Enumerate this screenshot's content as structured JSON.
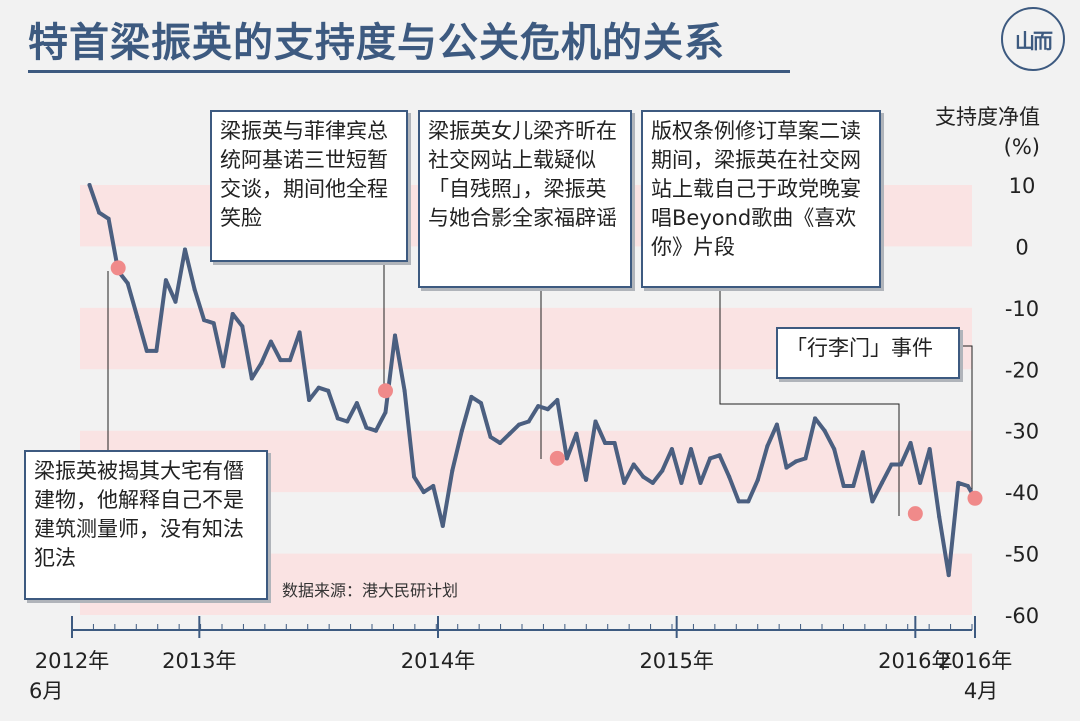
{
  "title": "特首梁振英的支持度与公关危机的关系",
  "logo_text": "山而",
  "source": "数据来源：港大民研计划",
  "ylabel_line1": "支持度净值",
  "ylabel_line2": "(%)",
  "colors": {
    "line": "#4b5f80",
    "band": "#fae3e3",
    "marker": "#f08a8a",
    "axis": "#3d5a80",
    "callout_border": "#3d5a80"
  },
  "callouts": [
    {
      "id": "c1",
      "text": "梁振英被揭其大宅有僭建物，他解释自己不是建筑测量师，没有知法犯法"
    },
    {
      "id": "c2",
      "text": "梁振英与菲律宾总统阿基诺三世短暂交谈，期间他全程笑脸"
    },
    {
      "id": "c3",
      "text": "梁振英女儿梁齐昕在社交网站上载疑似「自残照」，梁振英与她合影全家福辟谣"
    },
    {
      "id": "c4",
      "text": "版权条例修订草案二读期间，梁振英在社交网站上载自己于政党晚宴唱Beyond歌曲《喜欢你》片段"
    },
    {
      "id": "c5",
      "text": "「行李门」事件"
    }
  ],
  "chart_data": {
    "type": "line",
    "ylabel": "支持度净值 (%)",
    "ylim": [
      -60,
      10
    ],
    "yticks": [
      10,
      0,
      -10,
      -20,
      -30,
      -40,
      -50,
      -60
    ],
    "xlim": [
      2012.5,
      2016.25
    ],
    "xticks": [
      {
        "x": 2012.5,
        "line1": "2012年",
        "line2": "6月"
      },
      {
        "x": 2013.0,
        "line1": "2013年",
        "line2": ""
      },
      {
        "x": 2014.0,
        "line1": "2014年",
        "line2": ""
      },
      {
        "x": 2015.0,
        "line1": "2015年",
        "line2": ""
      },
      {
        "x": 2016.0,
        "line1": "2016年",
        "line2": ""
      },
      {
        "x": 2016.25,
        "line1": "2016年",
        "line2": "4月"
      }
    ],
    "bands": [
      [
        0,
        10
      ],
      [
        -20,
        -10
      ],
      [
        -40,
        -30
      ],
      [
        -60,
        -50
      ]
    ],
    "grid": false,
    "series": [
      {
        "x": [
          2012.54,
          2012.58,
          2012.62,
          2012.66,
          2012.7,
          2012.74,
          2012.78,
          2012.82,
          2012.86,
          2012.9,
          2012.94,
          2012.98,
          2013.02,
          2013.06,
          2013.1,
          2013.14,
          2013.18,
          2013.22,
          2013.26,
          2013.3,
          2013.34,
          2013.38,
          2013.42,
          2013.46,
          2013.5,
          2013.54,
          2013.58,
          2013.62,
          2013.66,
          2013.7,
          2013.74,
          2013.78,
          2013.82,
          2013.86,
          2013.9,
          2013.94,
          2013.98,
          2014.02,
          2014.06,
          2014.1,
          2014.14,
          2014.18,
          2014.22,
          2014.26,
          2014.3,
          2014.34,
          2014.38,
          2014.42,
          2014.46,
          2014.5,
          2014.54,
          2014.58,
          2014.62,
          2014.66,
          2014.7,
          2014.74,
          2014.78,
          2014.82,
          2014.86,
          2014.9,
          2014.94,
          2014.98,
          2015.02,
          2015.06,
          2015.1,
          2015.14,
          2015.18,
          2015.22,
          2015.26,
          2015.3,
          2015.34,
          2015.38,
          2015.42,
          2015.46,
          2015.5,
          2015.54,
          2015.58,
          2015.62,
          2015.66,
          2015.7,
          2015.74,
          2015.78,
          2015.82,
          2015.86,
          2015.9,
          2015.94,
          2015.98,
          2016.02,
          2016.06,
          2016.1,
          2016.14,
          2016.18,
          2016.22,
          2016.25
        ],
        "y": [
          10.0,
          5.5,
          4.5,
          -4.0,
          -6.0,
          -11.5,
          -17.0,
          -17.0,
          -5.5,
          -9.0,
          -0.5,
          -7.0,
          -12.0,
          -12.5,
          -19.5,
          -11.0,
          -13.0,
          -21.5,
          -19.0,
          -15.5,
          -18.5,
          -18.5,
          -14.0,
          -25.0,
          -23.0,
          -23.5,
          -28.0,
          -28.5,
          -25.5,
          -29.5,
          -30.0,
          -27.0,
          -14.5,
          -23.5,
          -37.5,
          -40.0,
          -39.0,
          -45.5,
          -36.5,
          -30.0,
          -24.5,
          -25.5,
          -31.0,
          -32.0,
          -30.5,
          -29.0,
          -28.5,
          -26.0,
          -26.5,
          -25.0,
          -34.5,
          -30.5,
          -38.0,
          -28.5,
          -32.0,
          -32.0,
          -38.5,
          -35.5,
          -37.5,
          -38.5,
          -36.5,
          -33.0,
          -38.5,
          -33.0,
          -38.5,
          -34.5,
          -34.0,
          -37.5,
          -41.5,
          -41.5,
          -38.0,
          -32.5,
          -29.0,
          -36.0,
          -35.0,
          -34.5,
          -28.0,
          -30.0,
          -33.0,
          -39.0,
          -39.0,
          -33.5,
          -41.5,
          -38.5,
          -35.5,
          -35.5,
          -32.0,
          -38.5,
          -33.0,
          -44.0,
          -53.5,
          -38.5,
          -39.0,
          -41.0
        ]
      }
    ],
    "markers": [
      {
        "x": 2012.66,
        "y": -3.5
      },
      {
        "x": 2013.78,
        "y": -23.5
      },
      {
        "x": 2014.5,
        "y": -34.5
      },
      {
        "x": 2016.0,
        "y": -43.5
      },
      {
        "x": 2016.25,
        "y": -41.0
      }
    ]
  }
}
